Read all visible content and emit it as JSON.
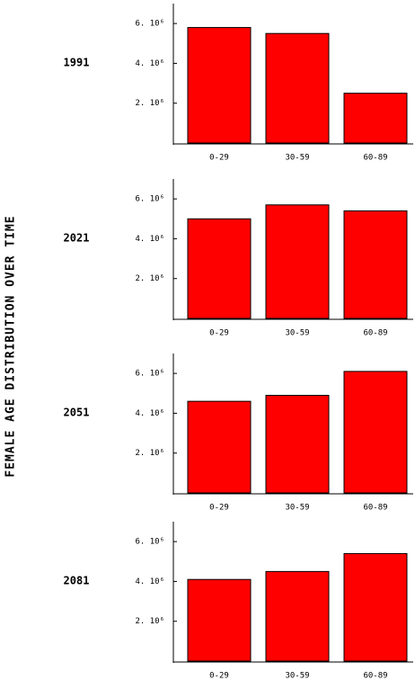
{
  "title": "FEMALE AGE DISTRIBUTION OVER TIME",
  "chart_data": [
    {
      "type": "bar",
      "title": "1991",
      "categories": [
        "0-29",
        "30-59",
        "60-89"
      ],
      "values": [
        5800000,
        5500000,
        2500000
      ],
      "color": "#ff0000",
      "ylim": [
        0,
        7000000
      ],
      "yticks": [
        {
          "value": 2000000,
          "label": "2. 10⁶"
        },
        {
          "value": 4000000,
          "label": "4. 10⁶"
        },
        {
          "value": 6000000,
          "label": "6. 10⁶"
        }
      ]
    },
    {
      "type": "bar",
      "title": "2021",
      "categories": [
        "0-29",
        "30-59",
        "60-89"
      ],
      "values": [
        5000000,
        5700000,
        5400000
      ],
      "color": "#ff0000",
      "ylim": [
        0,
        7000000
      ],
      "yticks": [
        {
          "value": 2000000,
          "label": "2. 10⁶"
        },
        {
          "value": 4000000,
          "label": "4. 10⁶"
        },
        {
          "value": 6000000,
          "label": "6. 10⁶"
        }
      ]
    },
    {
      "type": "bar",
      "title": "2051",
      "categories": [
        "0-29",
        "30-59",
        "60-89"
      ],
      "values": [
        4600000,
        4900000,
        6100000
      ],
      "color": "#ff0000",
      "ylim": [
        0,
        7000000
      ],
      "yticks": [
        {
          "value": 2000000,
          "label": "2. 10⁶"
        },
        {
          "value": 4000000,
          "label": "4. 10⁶"
        },
        {
          "value": 6000000,
          "label": "6. 10⁶"
        }
      ]
    },
    {
      "type": "bar",
      "title": "2081",
      "categories": [
        "0-29",
        "30-59",
        "60-89"
      ],
      "values": [
        4100000,
        4500000,
        5400000
      ],
      "color": "#ff0000",
      "ylim": [
        0,
        7000000
      ],
      "yticks": [
        {
          "value": 2000000,
          "label": "2. 10⁶"
        },
        {
          "value": 4000000,
          "label": "4. 10⁶"
        },
        {
          "value": 6000000,
          "label": "6. 10⁶"
        }
      ]
    }
  ]
}
